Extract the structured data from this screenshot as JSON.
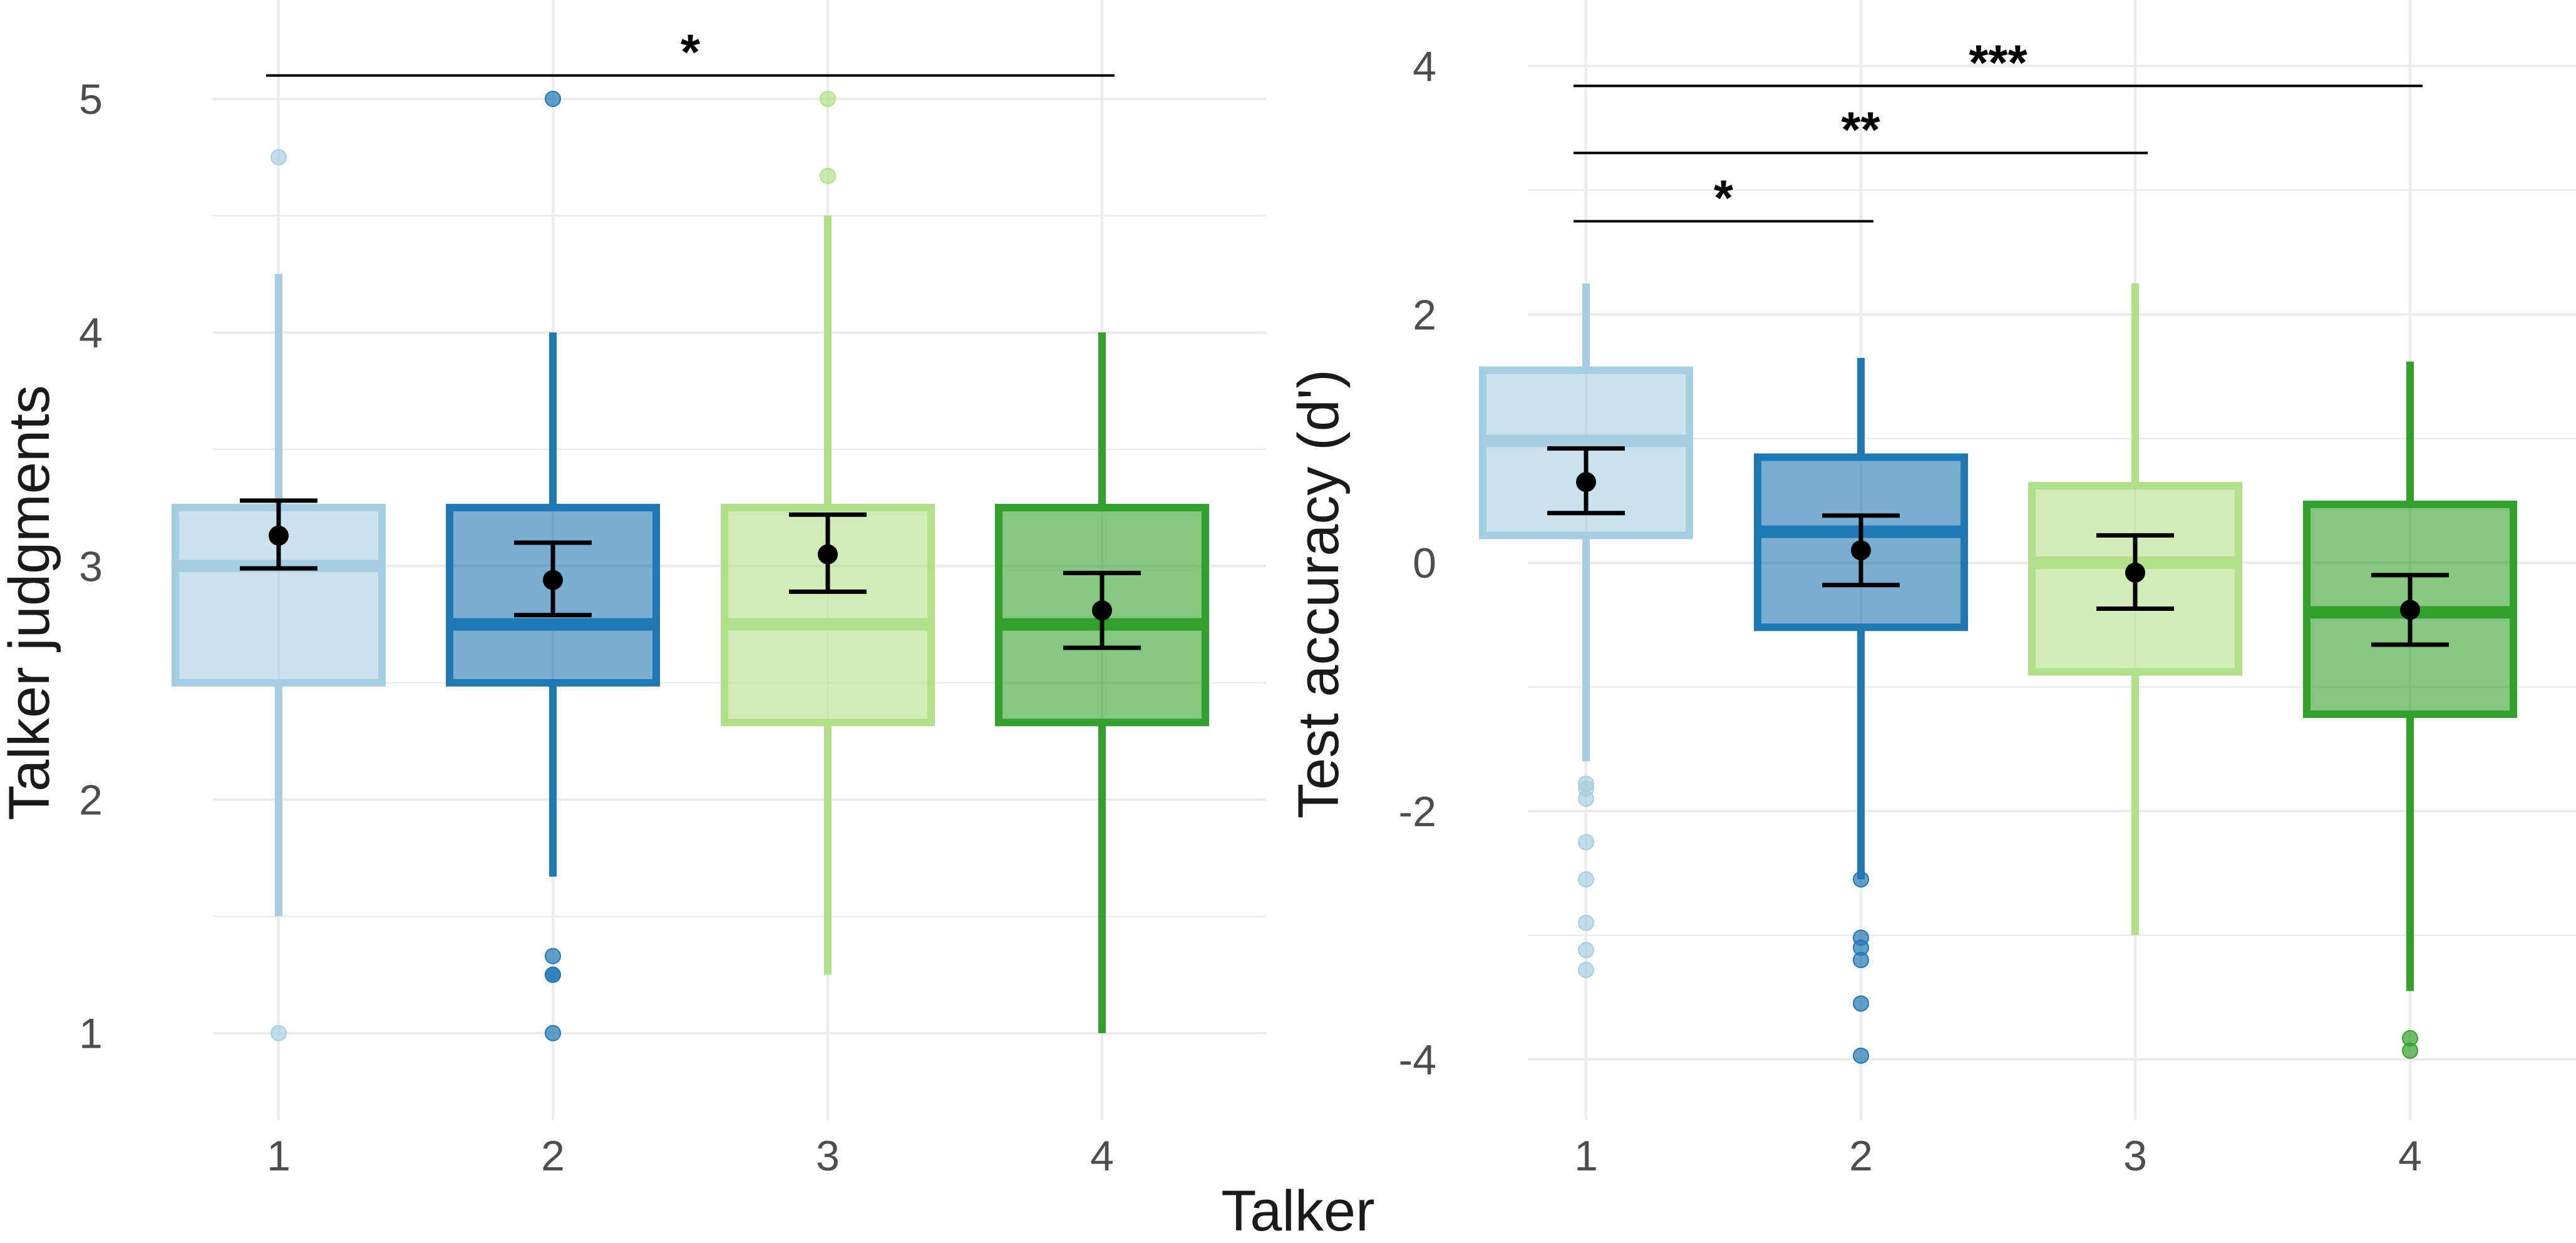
{
  "shared_xlabel": "Talker",
  "chart_data": [
    {
      "type": "box",
      "title": "",
      "xlabel": "",
      "ylabel": "Talker judgments",
      "categories": [
        "1",
        "2",
        "3",
        "4"
      ],
      "yticks": [
        1,
        2,
        3,
        4,
        5
      ],
      "ylim": [
        0.6,
        5.3
      ],
      "grid": true,
      "colors": [
        "#a6cee3",
        "#1f78b4",
        "#b2df8a",
        "#33a02c"
      ],
      "boxes": [
        {
          "category": "1",
          "lower_whisker": 1.5,
          "q1": 2.5,
          "median": 3.0,
          "q3": 3.25,
          "upper_whisker": 4.25,
          "outliers": [
            1.0,
            4.75
          ]
        },
        {
          "category": "2",
          "lower_whisker": 1.67,
          "q1": 2.5,
          "median": 2.75,
          "q3": 3.25,
          "upper_whisker": 4.0,
          "outliers": [
            1.0,
            1.25,
            1.25,
            1.33,
            5.0
          ]
        },
        {
          "category": "3",
          "lower_whisker": 1.25,
          "q1": 2.33,
          "median": 2.75,
          "q3": 3.25,
          "upper_whisker": 4.5,
          "outliers": [
            4.67,
            5.0
          ]
        },
        {
          "category": "4",
          "lower_whisker": 1.0,
          "q1": 2.33,
          "median": 2.75,
          "q3": 3.25,
          "upper_whisker": 4.0,
          "outliers": []
        }
      ],
      "means": [
        {
          "category": "1",
          "mean": 3.13,
          "lower": 2.99,
          "upper": 3.28
        },
        {
          "category": "2",
          "mean": 2.94,
          "lower": 2.79,
          "upper": 3.1
        },
        {
          "category": "3",
          "mean": 3.05,
          "lower": 2.89,
          "upper": 3.22
        },
        {
          "category": "4",
          "mean": 2.81,
          "lower": 2.65,
          "upper": 2.97
        }
      ],
      "significance": [
        {
          "from": "1",
          "to": "4",
          "y": 5.1,
          "label": "*"
        }
      ]
    },
    {
      "type": "box",
      "title": "",
      "xlabel": "",
      "ylabel": "Test accuracy (d')",
      "categories": [
        "1",
        "2",
        "3",
        "4"
      ],
      "yticks": [
        -4,
        -2,
        0,
        2,
        4
      ],
      "ylim": [
        -4.4,
        4.3
      ],
      "grid": true,
      "colors": [
        "#a6cee3",
        "#1f78b4",
        "#b2df8a",
        "#33a02c"
      ],
      "boxes": [
        {
          "category": "1",
          "lower_whisker": -1.6,
          "q1": 0.22,
          "median": 0.98,
          "q3": 1.55,
          "upper_whisker": 2.25,
          "outliers": [
            -1.78,
            -1.82,
            -1.9,
            -2.25,
            -2.55,
            -2.9,
            -3.12,
            -3.28
          ]
        },
        {
          "category": "2",
          "lower_whisker": -2.55,
          "q1": -0.52,
          "median": 0.25,
          "q3": 0.85,
          "upper_whisker": 1.65,
          "outliers": [
            -2.55,
            -3.02,
            -3.1,
            -3.2,
            -3.55,
            -3.97
          ]
        },
        {
          "category": "3",
          "lower_whisker": -3.0,
          "q1": -0.88,
          "median": 0.0,
          "q3": 0.62,
          "upper_whisker": 2.25,
          "outliers": []
        },
        {
          "category": "4",
          "lower_whisker": -3.45,
          "q1": -1.22,
          "median": -0.4,
          "q3": 0.47,
          "upper_whisker": 1.62,
          "outliers": [
            -3.83,
            -3.93
          ]
        }
      ],
      "means": [
        {
          "category": "1",
          "mean": 0.65,
          "lower": 0.4,
          "upper": 0.92
        },
        {
          "category": "2",
          "mean": 0.1,
          "lower": -0.18,
          "upper": 0.38
        },
        {
          "category": "3",
          "mean": -0.08,
          "lower": -0.37,
          "upper": 0.22
        },
        {
          "category": "4",
          "mean": -0.38,
          "lower": -0.66,
          "upper": -0.1
        }
      ],
      "significance": [
        {
          "from": "1",
          "to": "4",
          "y": 3.84,
          "label": "***"
        },
        {
          "from": "1",
          "to": "3",
          "y": 3.3,
          "label": "**"
        },
        {
          "from": "1",
          "to": "2",
          "y": 2.75,
          "label": "*"
        }
      ]
    }
  ]
}
